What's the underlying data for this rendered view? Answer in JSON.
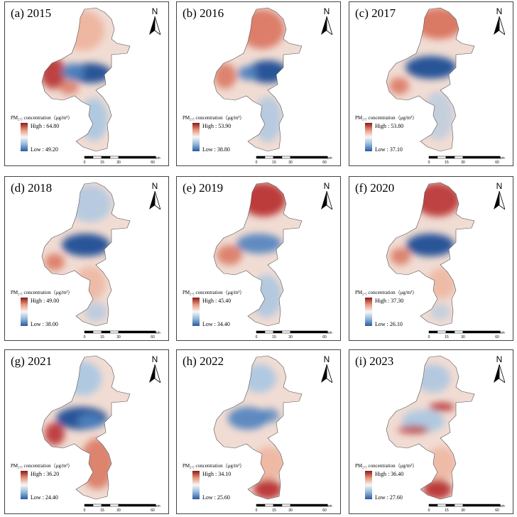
{
  "legend": {
    "title": "PM₂.₅ concentration（μg/m³）",
    "high_prefix": "High : ",
    "low_prefix": "Low : "
  },
  "north_label": "N",
  "scale": {
    "ticks": [
      "0",
      "15",
      "30",
      "60"
    ],
    "unit": "km"
  },
  "colors": {
    "high": "#8b1a1a",
    "mid": "#f7f7f7",
    "low": "#2a5aa0"
  },
  "panels": [
    {
      "title": "(a) 2015",
      "high": "64.80",
      "low": "49.20"
    },
    {
      "title": "(b) 2016",
      "high": "53.90",
      "low": "38.80"
    },
    {
      "title": "(c) 2017",
      "high": "53.80",
      "low": "37.10"
    },
    {
      "title": "(d) 2018",
      "high": "49.00",
      "low": "38.00"
    },
    {
      "title": "(e) 2019",
      "high": "45.40",
      "low": "34.40"
    },
    {
      "title": "(f) 2020",
      "high": "37.30",
      "low": "26.10"
    },
    {
      "title": "(g) 2021",
      "high": "36.20",
      "low": "24.40"
    },
    {
      "title": "(h) 2022",
      "high": "34.10",
      "low": "25.60"
    },
    {
      "title": "(i) 2023",
      "high": "36.40",
      "low": "27.60"
    }
  ]
}
